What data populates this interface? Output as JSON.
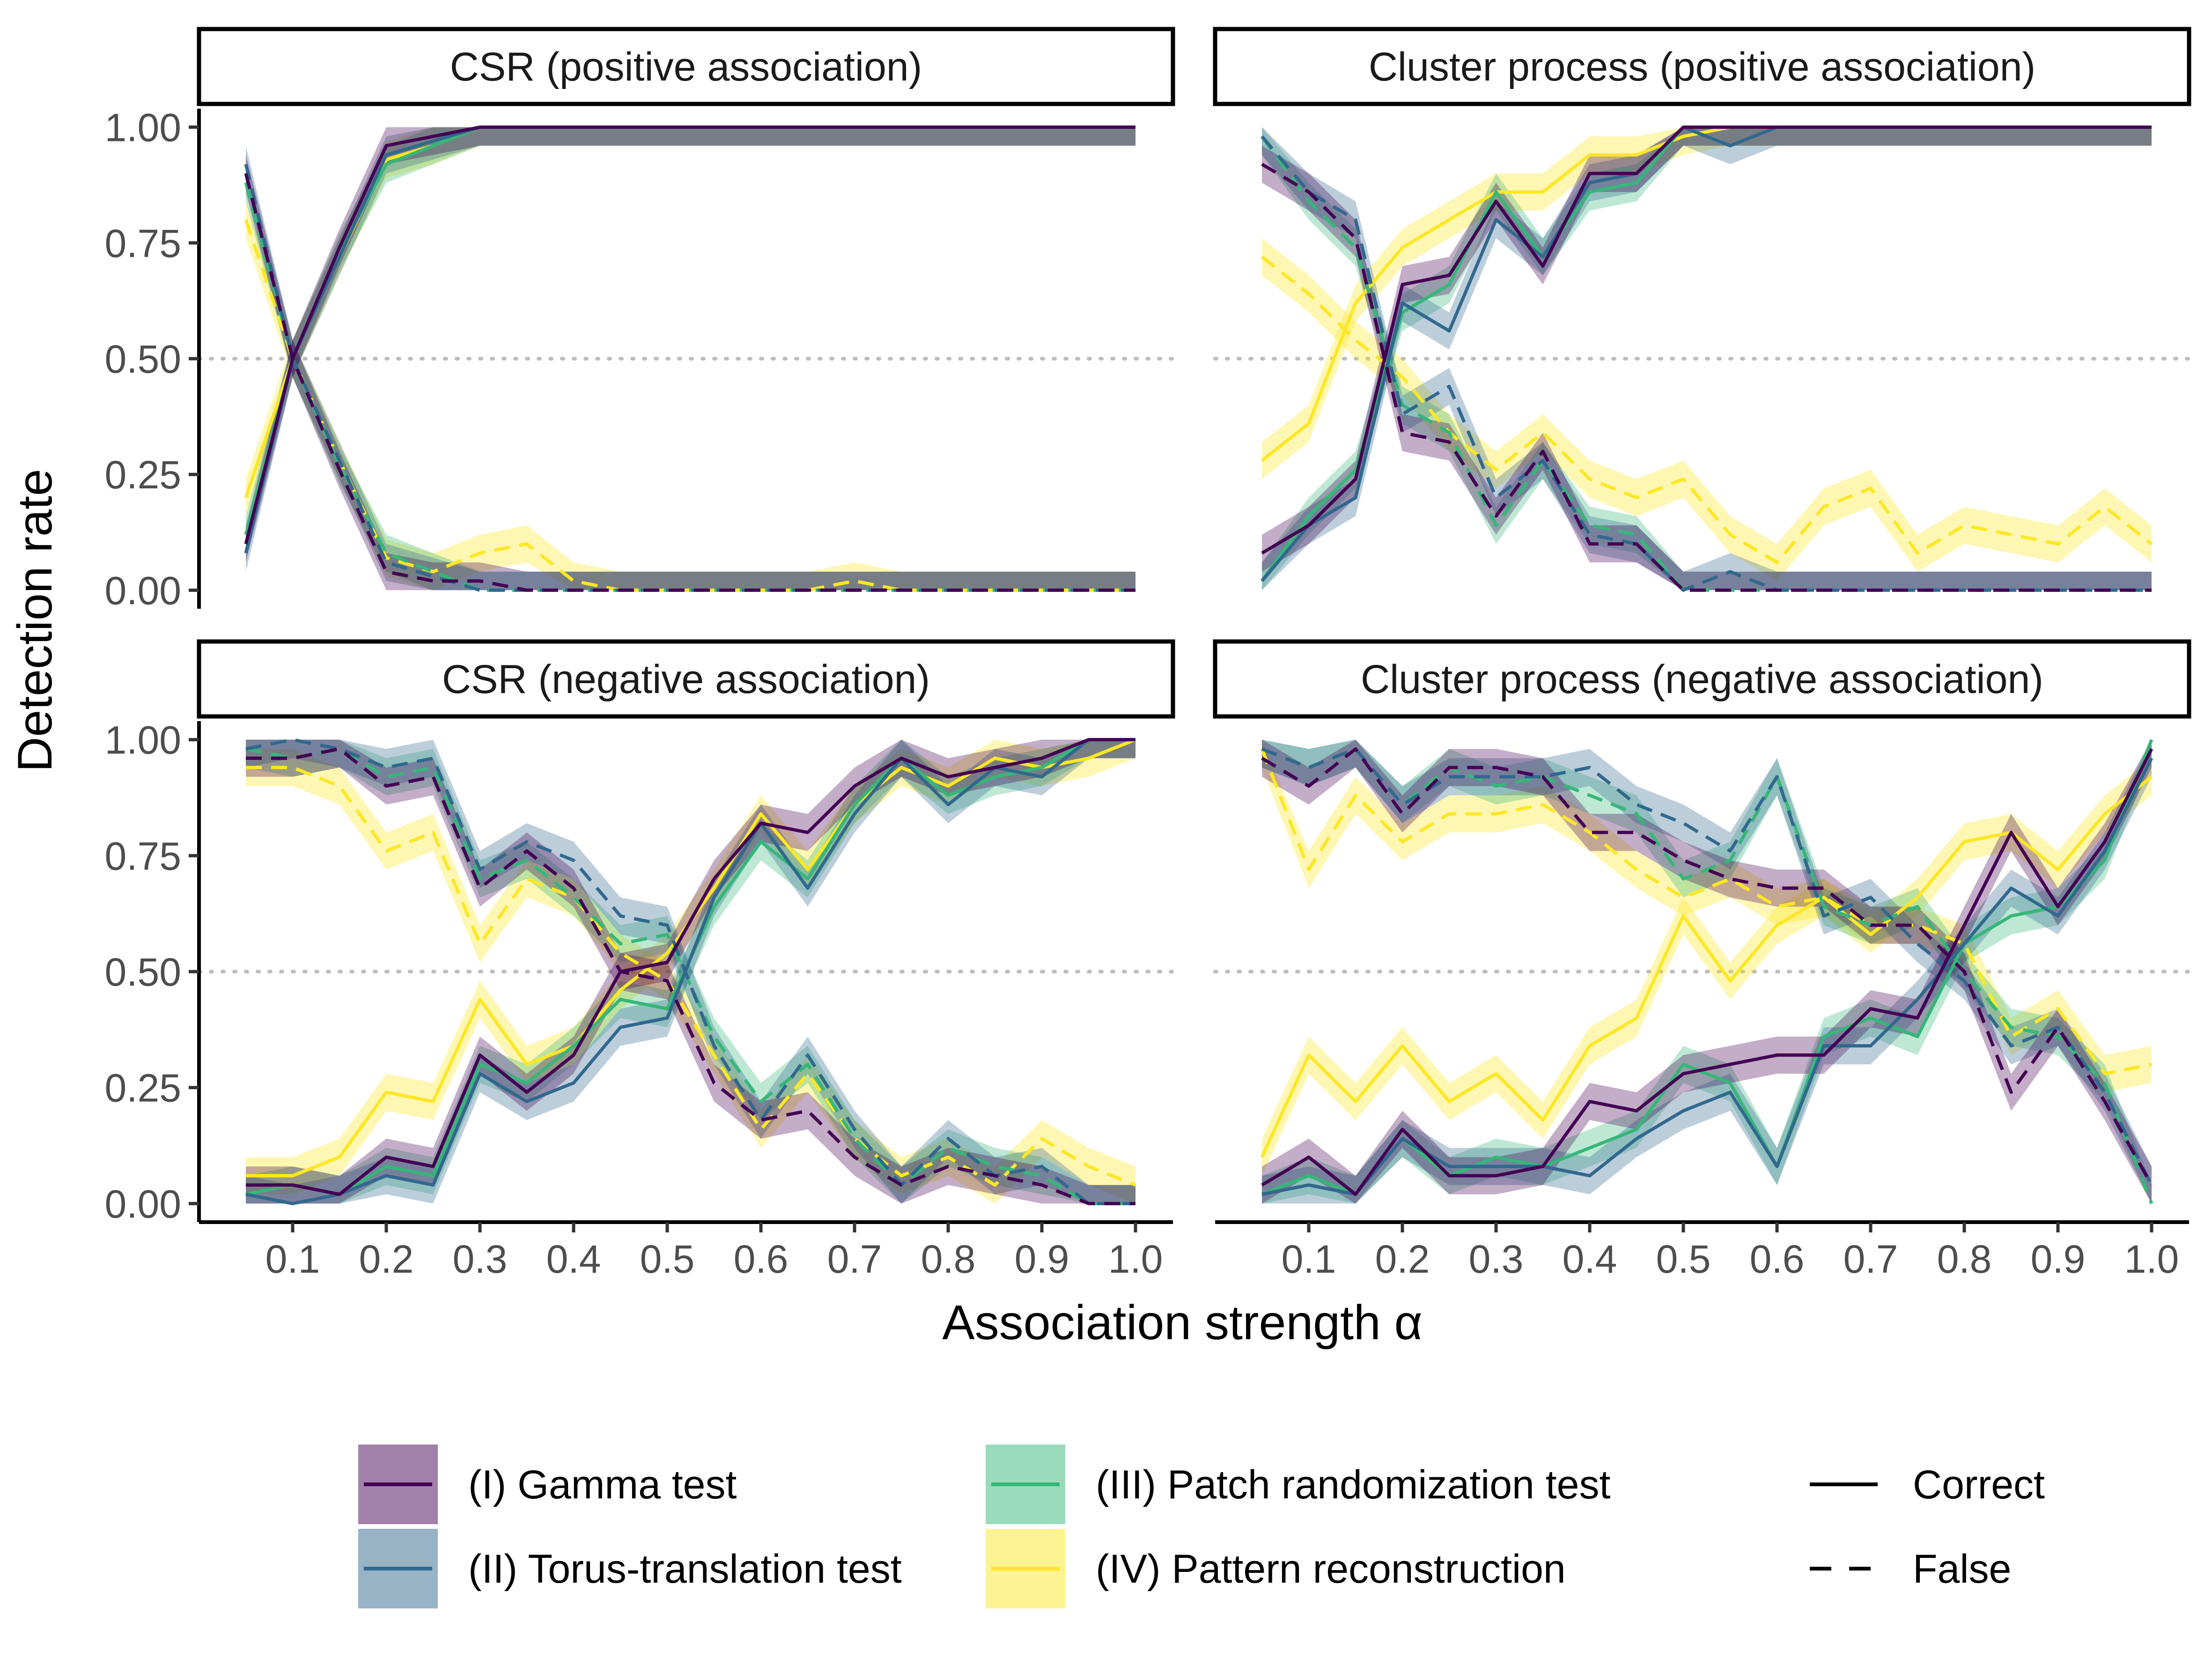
{
  "figure": {
    "x_axis_title": "Association strength α",
    "y_axis_title": "Detection rate"
  },
  "colors": {
    "gamma": "#440154",
    "torus": "#31688E",
    "patch": "#35B779",
    "reconstruction": "#FDE725",
    "reference_line": "#BEBEBE",
    "frame": "#000000",
    "tick_text": "#4D4D4D"
  },
  "legend": {
    "methods": [
      {
        "key": "gamma",
        "label": "(I) Gamma test"
      },
      {
        "key": "torus",
        "label": "(II) Torus-translation test"
      },
      {
        "key": "patch",
        "label": "(III) Patch randomization test"
      },
      {
        "key": "reconstruction",
        "label": "(IV) Pattern reconstruction"
      }
    ],
    "linetypes": [
      {
        "key": "correct",
        "label": "Correct",
        "dash": "solid"
      },
      {
        "key": "false",
        "label": "False",
        "dash": "dashed"
      }
    ]
  },
  "chart_data": {
    "type": "line",
    "x": [
      0.05,
      0.1,
      0.15,
      0.2,
      0.25,
      0.3,
      0.35,
      0.4,
      0.45,
      0.5,
      0.55,
      0.6,
      0.65,
      0.7,
      0.75,
      0.8,
      0.85,
      0.9,
      0.95,
      1.0
    ],
    "x_ticks": [
      "0.1",
      "0.2",
      "0.3",
      "0.4",
      "0.5",
      "0.6",
      "0.7",
      "0.8",
      "0.9",
      "1.0"
    ],
    "x_tick_values": [
      0.1,
      0.2,
      0.3,
      0.4,
      0.5,
      0.6,
      0.7,
      0.8,
      0.9,
      1.0
    ],
    "xlim": [
      0.0,
      1.04
    ],
    "y_ticks": [
      "0.00",
      "0.25",
      "0.50",
      "0.75",
      "1.00"
    ],
    "y_tick_values": [
      0,
      0.25,
      0.5,
      0.75,
      1.0
    ],
    "ylim": [
      -0.04,
      1.04
    ],
    "reference_y": 0.5,
    "grid": false,
    "legend_position": "bottom",
    "band_halfwidth": 0.04,
    "panels": [
      {
        "title": "CSR (positive association)",
        "series": {
          "gamma": {
            "correct": [
              0.1,
              0.5,
              0.74,
              0.96,
              0.98,
              1.0,
              1.0,
              1.0,
              1.0,
              1.0,
              1.0,
              1.0,
              1.0,
              1.0,
              1.0,
              1.0,
              1.0,
              1.0,
              1.0,
              1.0
            ],
            "false": [
              0.9,
              0.5,
              0.26,
              0.04,
              0.02,
              0.02,
              0.0,
              0.0,
              0.0,
              0.0,
              0.0,
              0.0,
              0.0,
              0.0,
              0.0,
              0.0,
              0.0,
              0.0,
              0.0,
              0.0
            ]
          },
          "torus": {
            "correct": [
              0.08,
              0.5,
              0.72,
              0.94,
              0.97,
              1.0,
              1.0,
              1.0,
              1.0,
              1.0,
              1.0,
              1.0,
              1.0,
              1.0,
              1.0,
              1.0,
              1.0,
              1.0,
              1.0,
              1.0
            ],
            "false": [
              0.92,
              0.5,
              0.28,
              0.06,
              0.03,
              0.0,
              0.0,
              0.0,
              0.0,
              0.0,
              0.0,
              0.0,
              0.0,
              0.0,
              0.0,
              0.0,
              0.0,
              0.0,
              0.0,
              0.0
            ]
          },
          "patch": {
            "correct": [
              0.12,
              0.5,
              0.73,
              0.92,
              0.96,
              1.0,
              1.0,
              1.0,
              1.0,
              1.0,
              1.0,
              1.0,
              1.0,
              1.0,
              1.0,
              1.0,
              1.0,
              1.0,
              1.0,
              1.0
            ],
            "false": [
              0.88,
              0.5,
              0.27,
              0.08,
              0.04,
              0.0,
              0.0,
              0.0,
              0.0,
              0.0,
              0.0,
              0.0,
              0.0,
              0.0,
              0.0,
              0.0,
              0.0,
              0.0,
              0.0,
              0.0
            ]
          },
          "reconstruction": {
            "correct": [
              0.2,
              0.5,
              0.72,
              0.93,
              0.96,
              1.0,
              1.0,
              1.0,
              1.0,
              1.0,
              1.0,
              1.0,
              1.0,
              1.0,
              1.0,
              1.0,
              1.0,
              1.0,
              1.0,
              1.0
            ],
            "false": [
              0.8,
              0.5,
              0.28,
              0.07,
              0.04,
              0.08,
              0.1,
              0.02,
              0.0,
              0.0,
              0.0,
              0.0,
              0.0,
              0.02,
              0.0,
              0.0,
              0.0,
              0.0,
              0.0,
              0.0
            ]
          }
        }
      },
      {
        "title": "Cluster process (positive association)",
        "series": {
          "gamma": {
            "correct": [
              0.08,
              0.14,
              0.24,
              0.66,
              0.68,
              0.84,
              0.7,
              0.9,
              0.9,
              1.0,
              1.0,
              1.0,
              1.0,
              1.0,
              1.0,
              1.0,
              1.0,
              1.0,
              1.0,
              1.0
            ],
            "false": [
              0.92,
              0.86,
              0.76,
              0.34,
              0.32,
              0.16,
              0.3,
              0.1,
              0.1,
              0.0,
              0.0,
              0.0,
              0.0,
              0.0,
              0.0,
              0.0,
              0.0,
              0.0,
              0.0,
              0.0
            ]
          },
          "torus": {
            "correct": [
              0.02,
              0.14,
              0.2,
              0.62,
              0.56,
              0.8,
              0.72,
              0.88,
              0.9,
              1.0,
              0.96,
              1.0,
              1.0,
              1.0,
              1.0,
              1.0,
              1.0,
              1.0,
              1.0,
              1.0
            ],
            "false": [
              0.98,
              0.86,
              0.8,
              0.38,
              0.44,
              0.2,
              0.28,
              0.12,
              0.1,
              0.0,
              0.04,
              0.0,
              0.0,
              0.0,
              0.0,
              0.0,
              0.0,
              0.0,
              0.0,
              0.0
            ]
          },
          "patch": {
            "correct": [
              0.02,
              0.16,
              0.26,
              0.6,
              0.66,
              0.86,
              0.72,
              0.86,
              0.88,
              1.0,
              1.0,
              1.0,
              1.0,
              1.0,
              1.0,
              1.0,
              1.0,
              1.0,
              1.0,
              1.0
            ],
            "false": [
              0.98,
              0.84,
              0.74,
              0.4,
              0.34,
              0.14,
              0.28,
              0.14,
              0.12,
              0.0,
              0.0,
              0.0,
              0.0,
              0.0,
              0.0,
              0.0,
              0.0,
              0.0,
              0.0,
              0.0
            ]
          },
          "reconstruction": {
            "correct": [
              0.28,
              0.36,
              0.62,
              0.74,
              0.8,
              0.86,
              0.86,
              0.94,
              0.94,
              0.98,
              1.0,
              1.0,
              1.0,
              1.0,
              1.0,
              1.0,
              1.0,
              1.0,
              1.0,
              1.0
            ],
            "false": [
              0.72,
              0.64,
              0.54,
              0.46,
              0.34,
              0.26,
              0.34,
              0.24,
              0.2,
              0.24,
              0.12,
              0.06,
              0.18,
              0.22,
              0.08,
              0.14,
              0.12,
              0.1,
              0.18,
              0.1
            ]
          }
        }
      },
      {
        "title": "CSR (negative association)",
        "series": {
          "gamma": {
            "correct": [
              0.04,
              0.04,
              0.02,
              0.1,
              0.08,
              0.32,
              0.24,
              0.32,
              0.5,
              0.52,
              0.7,
              0.82,
              0.8,
              0.9,
              0.96,
              0.92,
              0.94,
              0.96,
              1.0,
              1.0
            ],
            "false": [
              0.96,
              0.96,
              0.98,
              0.9,
              0.92,
              0.68,
              0.76,
              0.68,
              0.5,
              0.48,
              0.26,
              0.18,
              0.2,
              0.1,
              0.04,
              0.08,
              0.06,
              0.04,
              0.0,
              0.0
            ]
          },
          "torus": {
            "correct": [
              0.02,
              0.0,
              0.02,
              0.06,
              0.04,
              0.28,
              0.22,
              0.26,
              0.38,
              0.4,
              0.66,
              0.82,
              0.68,
              0.84,
              0.96,
              0.86,
              0.94,
              0.92,
              1.0,
              1.0
            ],
            "false": [
              0.98,
              1.0,
              0.98,
              0.94,
              0.96,
              0.72,
              0.78,
              0.74,
              0.62,
              0.6,
              0.34,
              0.18,
              0.32,
              0.16,
              0.04,
              0.14,
              0.06,
              0.08,
              0.0,
              0.0
            ]
          },
          "patch": {
            "correct": [
              0.02,
              0.04,
              0.02,
              0.08,
              0.06,
              0.3,
              0.26,
              0.34,
              0.44,
              0.42,
              0.64,
              0.78,
              0.7,
              0.86,
              0.96,
              0.88,
              0.92,
              0.94,
              1.0,
              1.0
            ],
            "false": [
              0.98,
              0.96,
              0.98,
              0.92,
              0.94,
              0.7,
              0.74,
              0.66,
              0.56,
              0.58,
              0.36,
              0.22,
              0.3,
              0.14,
              0.04,
              0.12,
              0.08,
              0.06,
              0.0,
              0.0
            ]
          },
          "reconstruction": {
            "correct": [
              0.06,
              0.06,
              0.1,
              0.24,
              0.22,
              0.44,
              0.3,
              0.34,
              0.46,
              0.54,
              0.68,
              0.84,
              0.72,
              0.86,
              0.94,
              0.9,
              0.96,
              0.94,
              0.96,
              1.0
            ],
            "false": [
              0.94,
              0.94,
              0.9,
              0.76,
              0.8,
              0.56,
              0.7,
              0.66,
              0.54,
              0.48,
              0.32,
              0.16,
              0.28,
              0.14,
              0.06,
              0.1,
              0.04,
              0.14,
              0.08,
              0.04
            ]
          }
        }
      },
      {
        "title": "Cluster process (negative association)",
        "series": {
          "gamma": {
            "correct": [
              0.04,
              0.1,
              0.02,
              0.16,
              0.06,
              0.06,
              0.08,
              0.22,
              0.2,
              0.28,
              0.3,
              0.32,
              0.32,
              0.42,
              0.4,
              0.6,
              0.8,
              0.64,
              0.78,
              0.98
            ],
            "false": [
              0.96,
              0.9,
              0.98,
              0.84,
              0.94,
              0.94,
              0.92,
              0.8,
              0.8,
              0.74,
              0.7,
              0.68,
              0.68,
              0.6,
              0.6,
              0.5,
              0.24,
              0.38,
              0.22,
              0.04
            ]
          },
          "torus": {
            "correct": [
              0.02,
              0.04,
              0.02,
              0.14,
              0.08,
              0.08,
              0.08,
              0.06,
              0.14,
              0.2,
              0.24,
              0.08,
              0.34,
              0.34,
              0.44,
              0.56,
              0.68,
              0.62,
              0.76,
              0.96
            ],
            "false": [
              0.98,
              0.94,
              0.98,
              0.86,
              0.92,
              0.92,
              0.92,
              0.94,
              0.86,
              0.82,
              0.76,
              0.92,
              0.62,
              0.66,
              0.56,
              0.48,
              0.34,
              0.38,
              0.24,
              0.04
            ]
          },
          "patch": {
            "correct": [
              0.02,
              0.06,
              0.02,
              0.14,
              0.06,
              0.1,
              0.08,
              0.12,
              0.16,
              0.3,
              0.26,
              0.08,
              0.36,
              0.4,
              0.36,
              0.56,
              0.62,
              0.64,
              0.74,
              1.0
            ],
            "false": [
              0.98,
              0.94,
              0.98,
              0.86,
              0.94,
              0.9,
              0.92,
              0.88,
              0.84,
              0.7,
              0.74,
              0.92,
              0.64,
              0.6,
              0.64,
              0.5,
              0.38,
              0.36,
              0.26,
              0.0
            ]
          },
          "reconstruction": {
            "correct": [
              0.1,
              0.32,
              0.22,
              0.34,
              0.22,
              0.28,
              0.18,
              0.34,
              0.4,
              0.62,
              0.48,
              0.6,
              0.66,
              0.58,
              0.66,
              0.78,
              0.8,
              0.72,
              0.84,
              0.92
            ],
            "false": [
              0.98,
              0.72,
              0.88,
              0.78,
              0.84,
              0.84,
              0.86,
              0.8,
              0.72,
              0.66,
              0.7,
              0.64,
              0.66,
              0.6,
              0.6,
              0.56,
              0.36,
              0.42,
              0.28,
              0.3
            ]
          }
        }
      }
    ]
  }
}
